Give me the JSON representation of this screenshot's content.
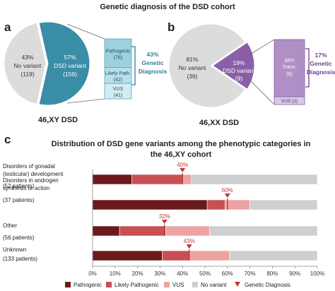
{
  "figure": {
    "title": "Genetic diagnosis of the DSD cohort",
    "panel_a": {
      "letter": "a",
      "caption": "46,XY DSD",
      "slices": [
        {
          "label": "No variant",
          "pct": "43%",
          "count": "(119)",
          "value": 43,
          "color": "#dcdcdc"
        },
        {
          "label": "DSD variant",
          "pct": "57%",
          "count": "(159)",
          "value": 57,
          "color": "#3a8da6"
        }
      ],
      "breakdown": [
        {
          "label": "Pathogenic",
          "count": "(76)",
          "value": 76,
          "color": "#9fd0de"
        },
        {
          "label": "Likely Path.",
          "count": "(42)",
          "value": 42,
          "color": "#b9dfe9"
        },
        {
          "label": "VUS",
          "count": "(41)",
          "value": 41,
          "color": "#d3ebf2"
        }
      ],
      "genetic_pct": "43%",
      "genetic_label_1": "Genetic",
      "genetic_label_2": "Diagnosis",
      "accent": "#2f7f95"
    },
    "panel_b": {
      "letter": "b",
      "caption": "46,XX DSD",
      "slices": [
        {
          "label": "No variant",
          "pct": "81%",
          "count": "(39)",
          "value": 81,
          "color": "#dcdcdc"
        },
        {
          "label": "DSD variant",
          "pct": "19%",
          "count": "(9)",
          "value": 19,
          "color": "#8a5fa8"
        }
      ],
      "breakdown": [
        {
          "label1": "SRY",
          "label2": "Trans.",
          "count": "(8)",
          "value": 8,
          "color": "#b08fc6"
        },
        {
          "label1": "VUS (1)",
          "label2": "",
          "count": "",
          "value": 1,
          "color": "#d7c8e3"
        }
      ],
      "genetic_pct": "17%",
      "genetic_label_1": "Genetic",
      "genetic_label_2": "Diagnosis",
      "accent": "#6e3f93"
    },
    "panel_c": {
      "letter": "c",
      "title_line1": "Distribution of DSD gene variants among the phenotypic categories in",
      "title_line2": "the 46,XY cohort"
    }
  },
  "chart_data": {
    "type": "bar",
    "orientation": "horizontal-stacked",
    "categories": [
      [
        "Disorders of gonadal",
        "(testicular) development",
        "(52 patients)"
      ],
      [
        "Disorders in androgen",
        "synthesis or action",
        "(37 patients)"
      ],
      [
        "Other",
        "(56 patients)"
      ],
      [
        "Unknown",
        "(133 patients)"
      ]
    ],
    "series": [
      {
        "name": "Pathogenic",
        "color": "#6b1a1c",
        "values": [
          17.5,
          51,
          12,
          31
        ]
      },
      {
        "name": "Likely Pathogenic",
        "color": "#c85052",
        "values": [
          22.5,
          8,
          20.5,
          12
        ]
      },
      {
        "name": "VUS",
        "color": "#eba4a3",
        "values": [
          4,
          11,
          19.5,
          18
        ]
      },
      {
        "name": "No variant",
        "color": "#cfcfcf",
        "values": [
          56,
          30,
          48,
          39
        ]
      }
    ],
    "genetic_diagnosis": {
      "name": "Genetic Diagnosis",
      "values": [
        40,
        60,
        32,
        43
      ],
      "labels": [
        "40%",
        "60%",
        "32%",
        "43%"
      ],
      "color": "#c0393b"
    },
    "xlim": [
      0,
      100
    ],
    "xticks": [
      "0%",
      "10%",
      "20%",
      "30%",
      "40%",
      "50%",
      "60%",
      "70%",
      "80%",
      "90%",
      "100%"
    ],
    "legend_position": "bottom",
    "grid": false
  }
}
